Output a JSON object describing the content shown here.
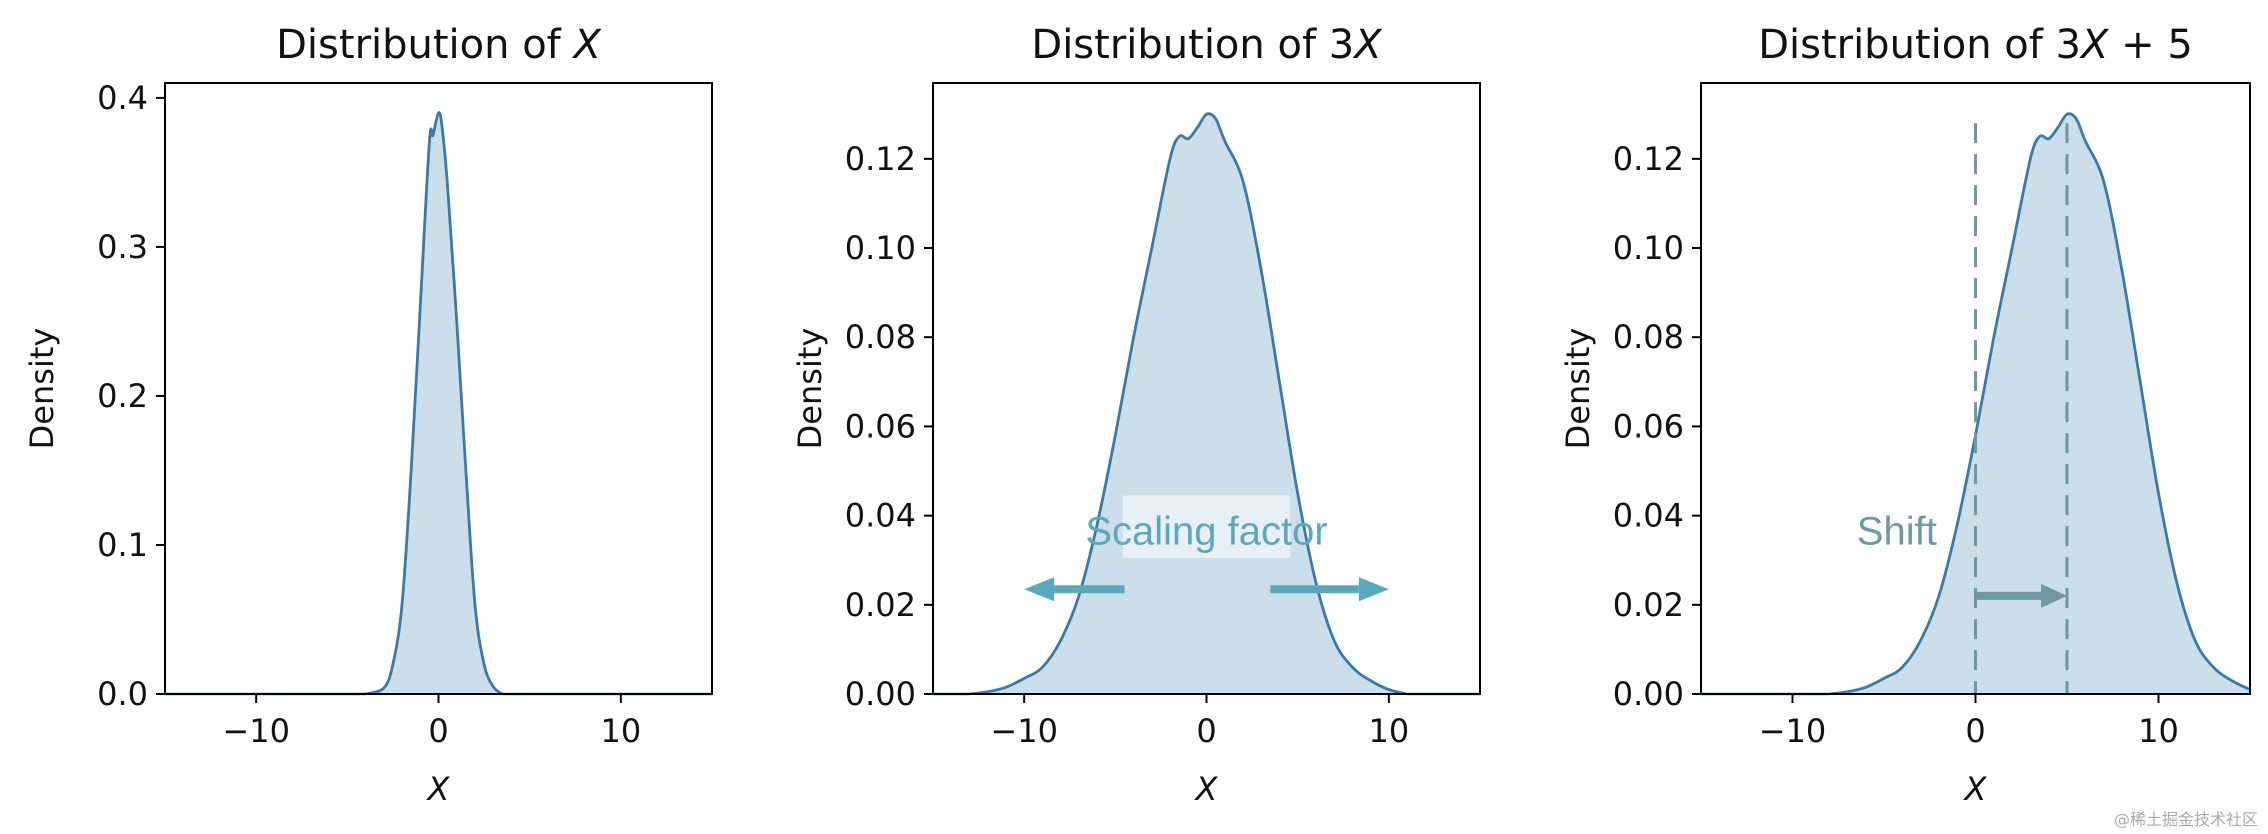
{
  "colors": {
    "curve": "#3a7aa8",
    "fill": "#c9dce9",
    "arrow_scale": "#5aa9b8",
    "annot_scale": "#5aa9b8",
    "arrow_shift": "#6c9aa0",
    "annot_shift": "#6c9aa0",
    "vline": "#6c9aa0"
  },
  "chart_data": [
    {
      "type": "area",
      "title": "Distribution of X",
      "title_parts": [
        "Distribution of ",
        "X"
      ],
      "xlabel": "X",
      "ylabel": "Density",
      "xlim": [
        -15,
        15
      ],
      "ylim": [
        0,
        0.41
      ],
      "xticks": [
        -10,
        0,
        10
      ],
      "xtick_labels": [
        "−10",
        "0",
        "10"
      ],
      "yticks": [
        0.0,
        0.1,
        0.2,
        0.3,
        0.4
      ],
      "ytick_labels": [
        "0.0",
        "0.1",
        "0.2",
        "0.3",
        "0.4"
      ],
      "x": [
        -4.0,
        -3.0,
        -2.5,
        -2.0,
        -1.5,
        -1.0,
        -0.5,
        -0.3,
        0.0,
        0.2,
        0.5,
        1.0,
        1.5,
        2.0,
        2.5,
        3.0,
        3.5
      ],
      "y": [
        0.0,
        0.004,
        0.02,
        0.06,
        0.15,
        0.26,
        0.37,
        0.375,
        0.39,
        0.38,
        0.34,
        0.25,
        0.15,
        0.06,
        0.02,
        0.005,
        0.0
      ]
    },
    {
      "type": "area",
      "title": "Distribution of 3X",
      "title_parts": [
        "Distribution of 3",
        "X"
      ],
      "xlabel": "X",
      "ylabel": "Density",
      "xlim": [
        -15,
        15
      ],
      "ylim": [
        0,
        0.137
      ],
      "xticks": [
        -10,
        0,
        10
      ],
      "xtick_labels": [
        "−10",
        "0",
        "10"
      ],
      "yticks": [
        0.0,
        0.02,
        0.04,
        0.06,
        0.08,
        0.1,
        0.12
      ],
      "ytick_labels": [
        "0.00",
        "0.02",
        "0.04",
        "0.06",
        "0.08",
        "0.10",
        "0.12"
      ],
      "x": [
        -13,
        -12,
        -11,
        -10,
        -9,
        -8,
        -7,
        -6,
        -5,
        -4,
        -3,
        -2,
        -1.5,
        -1,
        -0.5,
        0,
        0.5,
        1,
        2,
        3,
        4,
        5,
        6,
        7,
        8,
        9,
        10,
        11
      ],
      "y": [
        0.0,
        0.0005,
        0.0015,
        0.0035,
        0.006,
        0.012,
        0.022,
        0.038,
        0.058,
        0.08,
        0.1,
        0.12,
        0.125,
        0.1245,
        0.127,
        0.13,
        0.129,
        0.124,
        0.115,
        0.095,
        0.07,
        0.045,
        0.025,
        0.012,
        0.006,
        0.003,
        0.001,
        0.0
      ],
      "annotation": "Scaling factor",
      "arrows": {
        "left": [
          -4.5,
          -10.0
        ],
        "right": [
          3.5,
          10.0
        ],
        "y": 0.0235
      }
    },
    {
      "type": "area",
      "title": "Distribution of 3X + 5",
      "title_parts": [
        "Distribution of 3",
        "X",
        " + 5"
      ],
      "xlabel": "X",
      "ylabel": "Density",
      "xlim": [
        -15,
        15
      ],
      "ylim": [
        0,
        0.137
      ],
      "xticks": [
        -10,
        0,
        10
      ],
      "xtick_labels": [
        "−10",
        "0",
        "10"
      ],
      "yticks": [
        0.0,
        0.02,
        0.04,
        0.06,
        0.08,
        0.1,
        0.12
      ],
      "ytick_labels": [
        "0.00",
        "0.02",
        "0.04",
        "0.06",
        "0.08",
        "0.10",
        "0.12"
      ],
      "x": [
        -8,
        -7,
        -6,
        -5,
        -4,
        -3,
        -2,
        -1,
        0,
        1,
        2,
        3,
        3.5,
        4,
        4.5,
        5,
        5.5,
        6,
        7,
        8,
        9,
        10,
        11,
        12,
        13,
        14,
        15
      ],
      "y": [
        0.0,
        0.0005,
        0.0015,
        0.0035,
        0.006,
        0.012,
        0.022,
        0.038,
        0.058,
        0.08,
        0.1,
        0.12,
        0.125,
        0.1245,
        0.127,
        0.13,
        0.129,
        0.124,
        0.115,
        0.095,
        0.07,
        0.045,
        0.025,
        0.012,
        0.006,
        0.003,
        0.001
      ],
      "annotation": "Shift",
      "vlines": [
        0,
        5
      ],
      "vline_top": 0.128,
      "arrow": {
        "from": 0.0,
        "to": 5.0,
        "y": 0.022
      }
    }
  ],
  "watermark": "@稀土掘金技术社区"
}
